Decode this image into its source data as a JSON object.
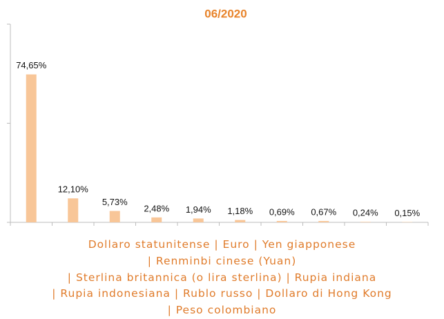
{
  "chart_data": {
    "type": "bar",
    "title": "06/2020",
    "categories": [
      "Dollaro statunitense",
      "Euro",
      "Yen giapponese",
      "Renminbi cinese (Yuan)",
      "Sterlina britannica (o lira sterlina)",
      "Rupia indiana",
      "Rupia indonesiana",
      "Rublo russo",
      "Dollaro di Hong Kong",
      "Peso colombiano"
    ],
    "category_separator": "|",
    "values": [
      74.65,
      12.1,
      5.73,
      2.48,
      1.94,
      1.18,
      0.69,
      0.67,
      0.24,
      0.15
    ],
    "value_labels": [
      "74,65%",
      "12,10%",
      "5,73%",
      "2,48%",
      "1,94%",
      "1,18%",
      "0,69%",
      "0,67%",
      "0,24%",
      "0,15%"
    ],
    "color": "#f8c698",
    "title_color": "#e8832a",
    "ylim": [
      0,
      100
    ],
    "yticks": [
      0,
      50,
      100
    ]
  }
}
